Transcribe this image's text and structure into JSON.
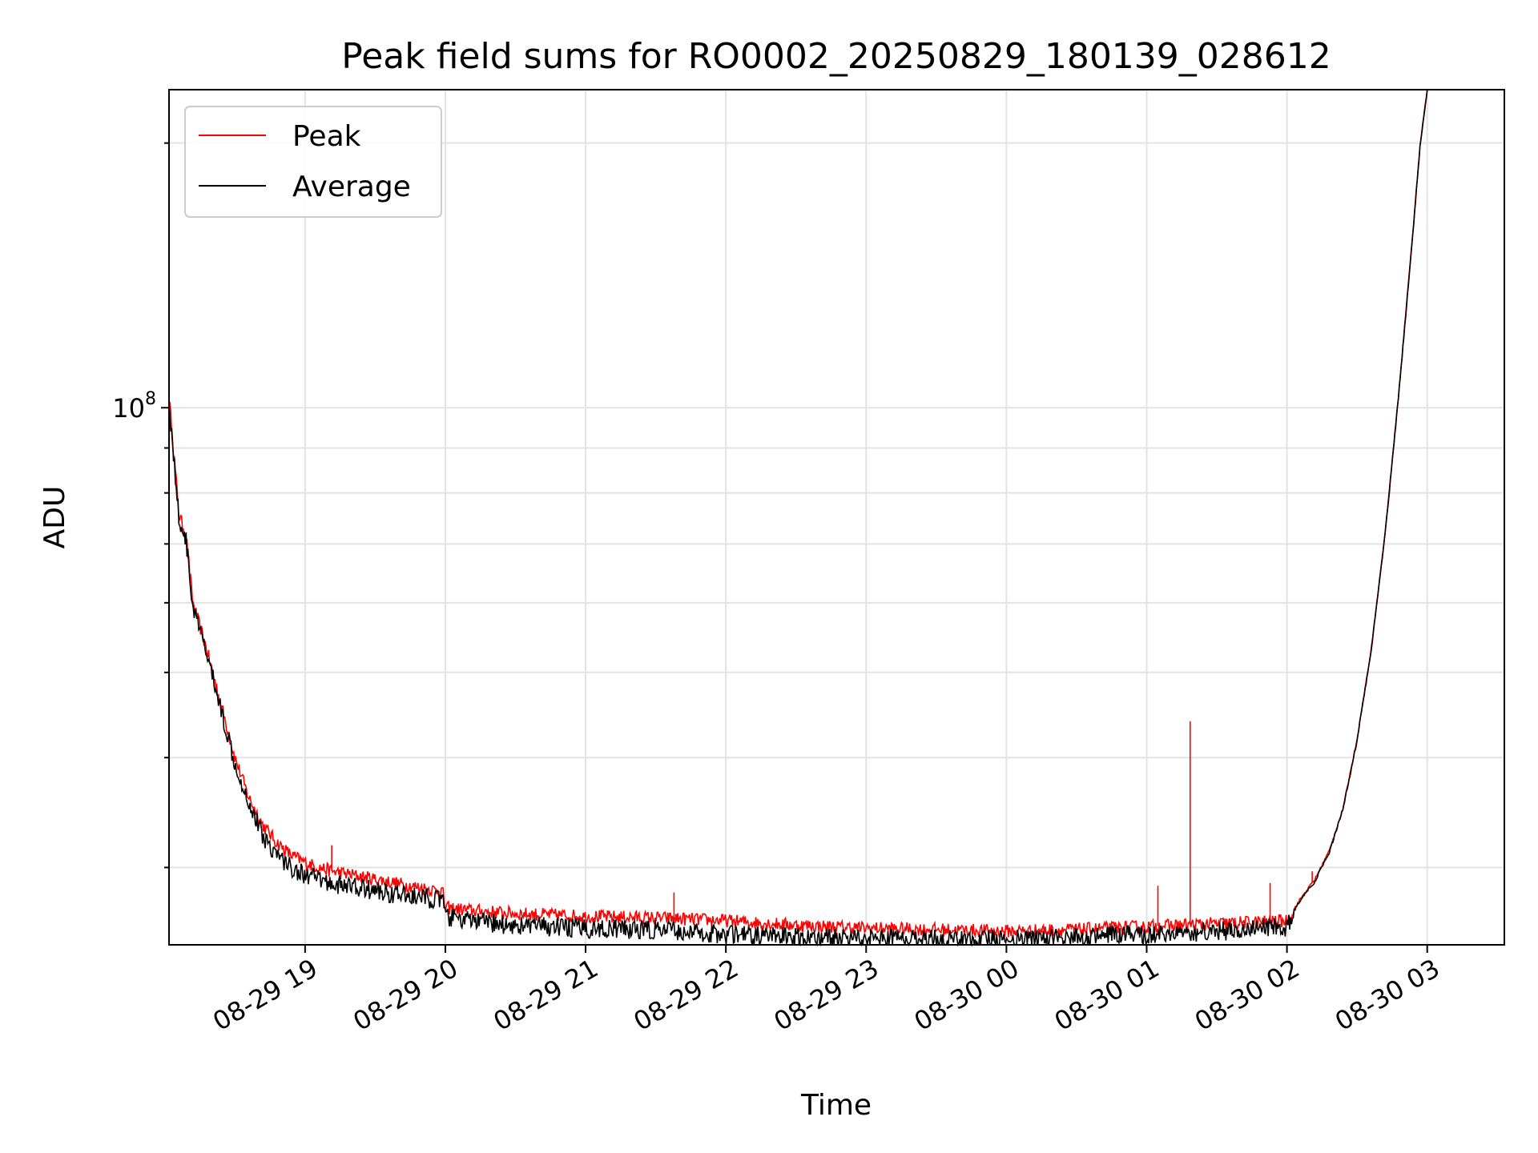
{
  "chart_data": {
    "type": "line",
    "title": "Peak field sums for RO0002_20250829_180139_028612",
    "xlabel": "Time",
    "ylabel": "ADU",
    "yscale": "log",
    "grid": true,
    "legend_placement": "top-left",
    "x_unit": "hours since 08-29 18:00",
    "xlim": [
      0.03,
      9.55
    ],
    "ylim": [
      24500000,
      230000000
    ],
    "x_ticks": [
      {
        "value": 1,
        "label": "08-29 19"
      },
      {
        "value": 2,
        "label": "08-29 20"
      },
      {
        "value": 3,
        "label": "08-29 21"
      },
      {
        "value": 4,
        "label": "08-29 22"
      },
      {
        "value": 5,
        "label": "08-29 23"
      },
      {
        "value": 6,
        "label": "08-30 00"
      },
      {
        "value": 7,
        "label": "08-30 01"
      },
      {
        "value": 8,
        "label": "08-30 02"
      },
      {
        "value": 9,
        "label": "08-30 03"
      }
    ],
    "y_major_ticks": [
      {
        "value": 100000000,
        "base": "10",
        "exp": "8"
      }
    ],
    "y_minor_ticks": [
      30000000,
      40000000,
      50000000,
      60000000,
      70000000,
      80000000,
      90000000,
      200000000
    ],
    "series": [
      {
        "name": "Peak",
        "color": "#ff0000",
        "x": [
          0.03,
          0.1,
          0.12,
          0.15,
          0.2,
          0.3,
          0.4,
          0.5,
          0.6,
          0.7,
          0.8,
          0.9,
          1.0,
          1.1,
          1.2,
          1.4,
          1.6,
          1.8,
          1.98,
          2.0,
          2.2,
          2.5,
          3.0,
          3.5,
          4.0,
          4.5,
          5.0,
          5.5,
          6.0,
          6.5,
          7.0,
          7.5,
          8.0,
          8.1,
          8.2,
          8.3,
          8.4,
          8.5,
          8.6,
          8.7,
          8.8,
          8.9,
          8.95,
          9.0
        ],
        "y": [
          103000000,
          76000000,
          74000000,
          72000000,
          60000000,
          53000000,
          46000000,
          40000000,
          36000000,
          33500000,
          32000000,
          31000000,
          30400000,
          30000000,
          29700000,
          29300000,
          28900000,
          28500000,
          28200000,
          27000000,
          26800000,
          26600000,
          26400000,
          26300000,
          26100000,
          25800000,
          25600000,
          25500000,
          25400000,
          25500000,
          25700000,
          25900000,
          26100000,
          27700000,
          29100000,
          31300000,
          35000000,
          42000000,
          53000000,
          72000000,
          105000000,
          160000000,
          200000000,
          230000000
        ]
      },
      {
        "name": "Average",
        "color": "#000000",
        "x": [
          0.03,
          0.1,
          0.12,
          0.15,
          0.2,
          0.3,
          0.4,
          0.5,
          0.6,
          0.7,
          0.8,
          0.9,
          1.0,
          1.1,
          1.2,
          1.4,
          1.6,
          1.8,
          1.98,
          2.0,
          2.2,
          2.5,
          3.0,
          3.5,
          4.0,
          4.5,
          5.0,
          5.5,
          6.0,
          6.5,
          7.0,
          7.5,
          8.0,
          8.1,
          8.2,
          8.3,
          8.4,
          8.5,
          8.6,
          8.7,
          8.8,
          8.9,
          8.95,
          9.0
        ],
        "y": [
          103000000,
          76000000,
          74000000,
          72000000,
          60000000,
          53000000,
          46000000,
          40000000,
          36000000,
          33000000,
          31400000,
          30400000,
          29800000,
          29400000,
          29100000,
          28800000,
          28400000,
          28100000,
          27900000,
          26700000,
          26400000,
          26100000,
          25900000,
          25800000,
          25500000,
          25300000,
          25300000,
          25200000,
          25200000,
          25300000,
          25500000,
          25700000,
          26000000,
          27600000,
          29000000,
          31200000,
          35000000,
          42000000,
          53000000,
          72000000,
          105000000,
          160000000,
          200000000,
          230000000
        ]
      }
    ],
    "annotations": [
      {
        "series": "Peak",
        "x": 1.19,
        "y": 31800000,
        "note": "spike"
      },
      {
        "series": "Peak",
        "x": 3.63,
        "y": 28100000,
        "note": "spike"
      },
      {
        "series": "Peak",
        "x": 7.08,
        "y": 28600000,
        "note": "spike"
      },
      {
        "series": "Peak",
        "x": 7.31,
        "y": 44000000,
        "note": "spike"
      },
      {
        "series": "Peak",
        "x": 7.88,
        "y": 28800000,
        "note": "spike"
      },
      {
        "series": "Peak",
        "x": 8.18,
        "y": 29700000,
        "note": "spike"
      }
    ]
  }
}
